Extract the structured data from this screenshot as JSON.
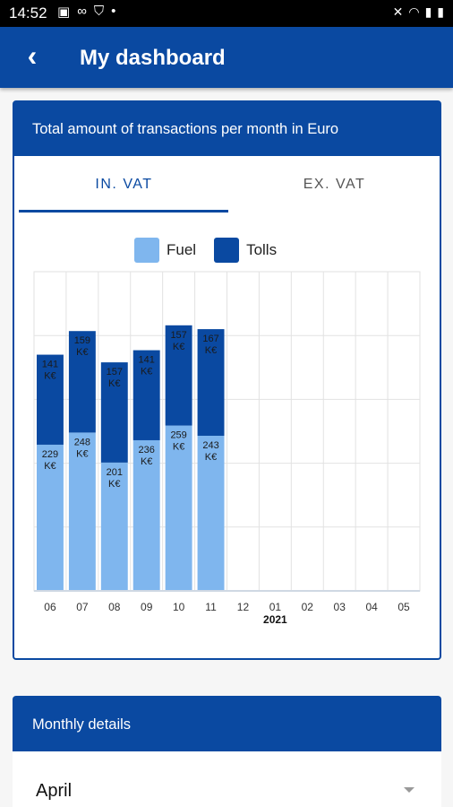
{
  "status_bar": {
    "time": "14:52"
  },
  "appbar": {
    "title": "My dashboard",
    "back_icon": "chevron-left-icon"
  },
  "card": {
    "title": "Total amount of transactions per month in Euro"
  },
  "tabs": [
    {
      "label": "IN. VAT",
      "active": true
    },
    {
      "label": "EX. VAT",
      "active": false
    }
  ],
  "legend": [
    {
      "label": "Fuel",
      "color": "#7fb6ee"
    },
    {
      "label": "Tolls",
      "color": "#0a49a1"
    }
  ],
  "chart_data": {
    "type": "bar",
    "stacked": true,
    "categories": [
      "06",
      "07",
      "08",
      "09",
      "10",
      "11",
      "12",
      "01",
      "02",
      "03",
      "04",
      "05"
    ],
    "year_label": "2021",
    "year_label_category": "01",
    "series": [
      {
        "name": "Fuel",
        "color": "#7fb6ee",
        "values": [
          229,
          248,
          201,
          236,
          259,
          243,
          0,
          0,
          0,
          0,
          0,
          0
        ],
        "labels": [
          "229\nK€",
          "248\nK€",
          "201\nK€",
          "236\nK€",
          "259\nK€",
          "243\nK€",
          "",
          "",
          "",
          "",
          "",
          ""
        ]
      },
      {
        "name": "Tolls",
        "color": "#0a49a1",
        "values": [
          141,
          159,
          157,
          141,
          157,
          167,
          0,
          0,
          0,
          0,
          0,
          0
        ],
        "labels": [
          "141\nK€",
          "159\nK€",
          "157\nK€",
          "141\nK€",
          "157\nK€",
          "167\nK€",
          "",
          "",
          "",
          "",
          "",
          ""
        ]
      }
    ],
    "ylim": [
      0,
      500
    ],
    "grid": true
  },
  "monthly_details": {
    "title": "Monthly details",
    "selected_month": "April"
  }
}
